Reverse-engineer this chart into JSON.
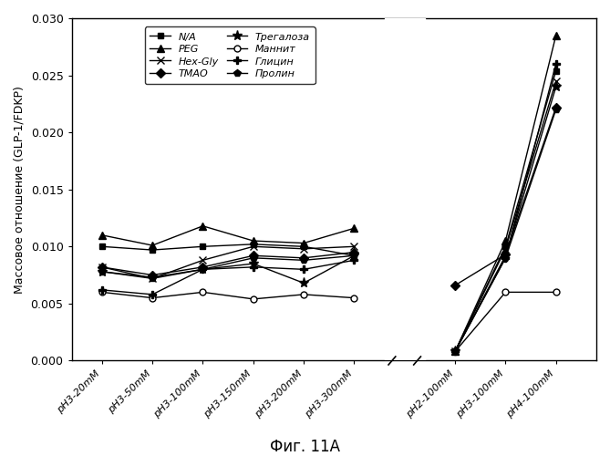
{
  "title": "Фиг. 11А",
  "ylabel": "Массовое отношение (GLP-1/FDKP)",
  "xlabels": [
    "pH3-20mM",
    "pH3-50mM",
    "pH3-100mM",
    "pH3-150mM",
    "pH3-200mM",
    "pH3-300mM",
    "pH2-100mM",
    "pH3-100mM",
    "pH4-100mM"
  ],
  "ylim": [
    0.0,
    0.03
  ],
  "yticks": [
    0.0,
    0.005,
    0.01,
    0.015,
    0.02,
    0.025,
    0.03
  ],
  "legend_order": [
    [
      "N/A",
      "PEG"
    ],
    [
      "Hex-Gly",
      "TMAO"
    ],
    [
      "Трегалоза",
      "Маннит"
    ],
    [
      "Глицин",
      "Пролин"
    ]
  ],
  "series": [
    {
      "label": "N/A",
      "marker": "s",
      "values": [
        0.01,
        0.0097,
        0.01,
        0.0102,
        0.01,
        0.0092,
        0.0008,
        0.01,
        0.0254
      ]
    },
    {
      "label": "PEG",
      "marker": "^",
      "values": [
        0.011,
        0.0101,
        0.0118,
        0.0105,
        0.0103,
        0.0116,
        0.0008,
        0.0105,
        0.0285
      ]
    },
    {
      "label": "Hex-Gly",
      "marker": "x",
      "values": [
        0.0082,
        0.0072,
        0.0088,
        0.01,
        0.0098,
        0.01,
        0.0008,
        0.0098,
        0.0245
      ]
    },
    {
      "label": "TMAO",
      "marker": "D",
      "values": [
        0.0082,
        0.0075,
        0.0082,
        0.0092,
        0.009,
        0.0095,
        0.0066,
        0.0093,
        0.0222
      ]
    },
    {
      "label": "Трегалоза",
      "marker": "*",
      "values": [
        0.0078,
        0.0073,
        0.008,
        0.0085,
        0.0068,
        0.0092,
        0.0008,
        0.0092,
        0.024
      ]
    },
    {
      "label": "Маннит",
      "marker": "o",
      "values": [
        0.006,
        0.0055,
        0.006,
        0.0054,
        0.0058,
        0.0055,
        0.0008,
        0.006,
        0.006
      ]
    },
    {
      "label": "Глицин",
      "marker": "+",
      "values": [
        0.0062,
        0.0058,
        0.008,
        0.0082,
        0.008,
        0.0088,
        0.0008,
        0.009,
        0.026
      ]
    },
    {
      "label": "Пролин",
      "marker": "p",
      "values": [
        0.0078,
        0.0072,
        0.008,
        0.009,
        0.0088,
        0.0092,
        0.0008,
        0.009,
        0.022
      ]
    }
  ]
}
